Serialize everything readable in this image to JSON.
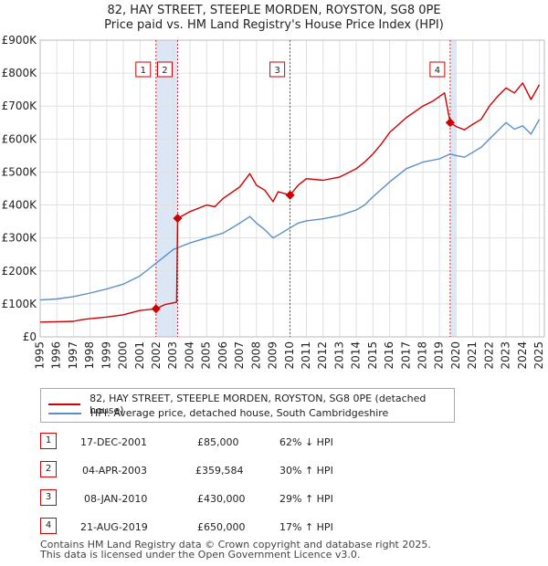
{
  "title_line1": "82, HAY STREET, STEEPLE MORDEN, ROYSTON, SG8 0PE",
  "title_line2": "Price paid vs. HM Land Registry's House Price Index (HPI)",
  "legend": {
    "price_label": "82, HAY STREET, STEEPLE MORDEN, ROYSTON, SG8 0PE (detached house)",
    "hpi_label": "HPI: Average price, detached house, South Cambridgeshire"
  },
  "colors": {
    "price": "#cc0000",
    "hpi": "#5b8fc9",
    "shade": "#dde6f5",
    "grid": "#e0e0e0",
    "marker_line": "#cc0000"
  },
  "sales_table": [
    {
      "num": "1",
      "date": "17-DEC-2001",
      "price": "£85,000",
      "hpi_diff": "62% ↓ HPI"
    },
    {
      "num": "2",
      "date": "04-APR-2003",
      "price": "£359,584",
      "hpi_diff": "30% ↑ HPI"
    },
    {
      "num": "3",
      "date": "08-JAN-2010",
      "price": "£430,000",
      "hpi_diff": "29% ↑ HPI"
    },
    {
      "num": "4",
      "date": "21-AUG-2019",
      "price": "£650,000",
      "hpi_diff": "17% ↑ HPI"
    }
  ],
  "footer_line1": "Contains HM Land Registry data © Crown copyright and database right 2025.",
  "footer_line2": "This data is licensed under the Open Government Licence v3.0.",
  "chart_data": {
    "type": "line",
    "xlim": [
      1995,
      2025.3
    ],
    "ylim": [
      0,
      900000
    ],
    "y_ticks": [
      0,
      100000,
      200000,
      300000,
      400000,
      500000,
      600000,
      700000,
      800000,
      900000
    ],
    "y_tick_labels": [
      "£0",
      "£100K",
      "£200K",
      "£300K",
      "£400K",
      "£500K",
      "£600K",
      "£700K",
      "£800K",
      "£900K"
    ],
    "x_ticks": [
      1995,
      1996,
      1997,
      1998,
      1999,
      2000,
      2001,
      2002,
      2003,
      2004,
      2005,
      2006,
      2007,
      2008,
      2009,
      2010,
      2011,
      2012,
      2013,
      2014,
      2015,
      2016,
      2017,
      2018,
      2019,
      2020,
      2021,
      2022,
      2023,
      2024,
      2025
    ],
    "x_tick_labels": [
      "1995",
      "1996",
      "1997",
      "1998",
      "1999",
      "2000",
      "2001",
      "2002",
      "2003",
      "2004",
      "2005",
      "2006",
      "2007",
      "2008",
      "2009",
      "2010",
      "2011",
      "2012",
      "2013",
      "2014",
      "2015",
      "2016",
      "2017",
      "2018",
      "2019",
      "2020",
      "2021",
      "2022",
      "2023",
      "2024",
      "2025"
    ],
    "shaded_ranges": [
      [
        2001.96,
        2003.26
      ],
      [
        2019.64,
        2020.0
      ]
    ],
    "series": [
      {
        "name": "82, HAY STREET, STEEPLE MORDEN, ROYSTON, SG8 0PE (detached house)",
        "x": [
          1995.0,
          1996.0,
          1997.0,
          1997.5,
          1998.0,
          1999.0,
          2000.0,
          2001.0,
          2001.96,
          2002.5,
          2003.2,
          2003.26,
          2004.0,
          2005.0,
          2005.5,
          2006.0,
          2007.0,
          2007.6,
          2008.0,
          2008.5,
          2009.0,
          2009.3,
          2010.02,
          2010.5,
          2011.0,
          2012.0,
          2013.0,
          2014.0,
          2014.5,
          2015.0,
          2015.5,
          2016.0,
          2017.0,
          2018.0,
          2018.6,
          2019.3,
          2019.64,
          2020.0,
          2020.5,
          2021.0,
          2021.5,
          2022.0,
          2022.5,
          2023.0,
          2023.5,
          2024.0,
          2024.5,
          2025.0
        ],
        "y": [
          45000,
          46000,
          47000,
          52000,
          55000,
          60000,
          67000,
          80000,
          85000,
          98000,
          105000,
          359584,
          380000,
          400000,
          395000,
          420000,
          455000,
          495000,
          460000,
          445000,
          410000,
          440000,
          430000,
          460000,
          480000,
          475000,
          485000,
          510000,
          530000,
          555000,
          585000,
          620000,
          665000,
          700000,
          715000,
          740000,
          650000,
          638000,
          628000,
          645000,
          660000,
          700000,
          730000,
          755000,
          740000,
          770000,
          720000,
          765000
        ]
      },
      {
        "name": "HPI: Average price, detached house, South Cambridgeshire",
        "x": [
          1995.0,
          1996.0,
          1997.0,
          1998.0,
          1999.0,
          2000.0,
          2001.0,
          2001.5,
          2002.0,
          2003.0,
          2004.0,
          2005.0,
          2006.0,
          2007.0,
          2007.6,
          2008.0,
          2008.5,
          2009.0,
          2009.5,
          2010.0,
          2010.5,
          2011.0,
          2012.0,
          2013.0,
          2014.0,
          2014.5,
          2015.0,
          2016.0,
          2017.0,
          2018.0,
          2019.0,
          2019.64,
          2020.0,
          2020.5,
          2021.0,
          2021.5,
          2022.0,
          2022.5,
          2023.0,
          2023.5,
          2024.0,
          2024.5,
          2025.0
        ],
        "y": [
          112000,
          115000,
          122000,
          133000,
          145000,
          160000,
          185000,
          205000,
          225000,
          265000,
          285000,
          300000,
          315000,
          345000,
          365000,
          345000,
          325000,
          300000,
          315000,
          330000,
          345000,
          352000,
          358000,
          368000,
          385000,
          400000,
          425000,
          470000,
          510000,
          530000,
          540000,
          555000,
          550000,
          545000,
          560000,
          575000,
          600000,
          625000,
          650000,
          630000,
          640000,
          615000,
          660000
        ]
      }
    ],
    "sale_markers": [
      {
        "label": "1",
        "x": 2001.96,
        "y": 85000
      },
      {
        "label": "2",
        "x": 2003.26,
        "y": 359584
      },
      {
        "label": "3",
        "x": 2010.02,
        "y": 430000
      },
      {
        "label": "4",
        "x": 2019.64,
        "y": 650000
      }
    ]
  }
}
